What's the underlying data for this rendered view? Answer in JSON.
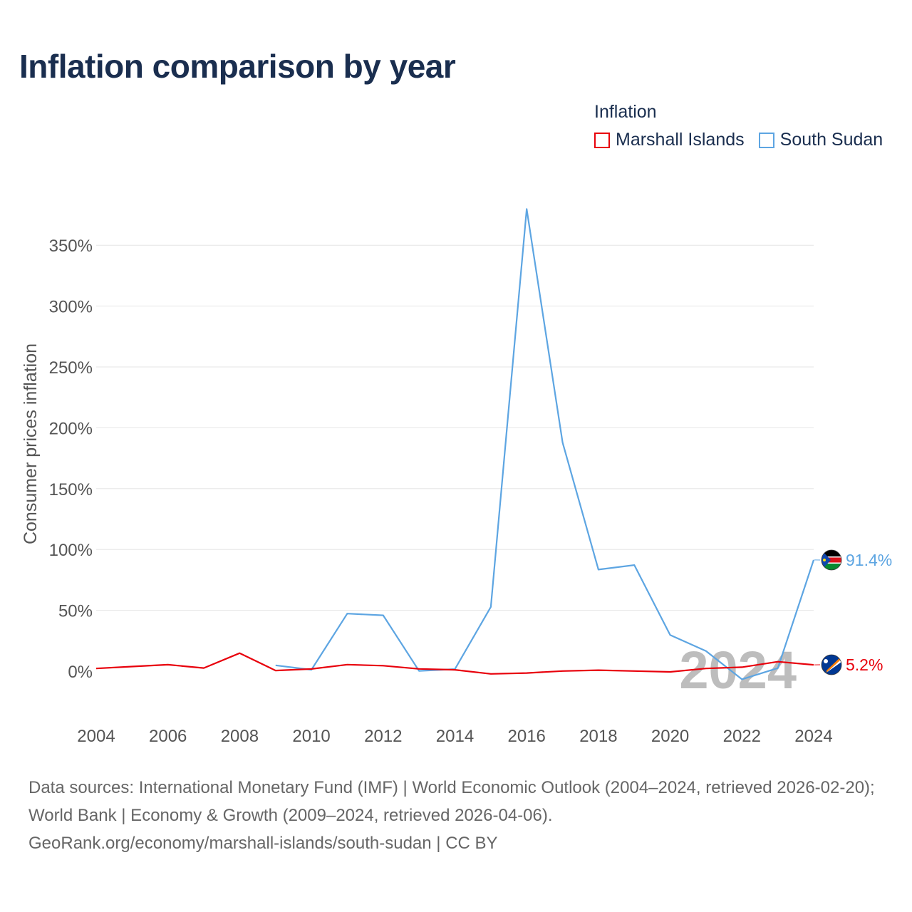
{
  "title": "Inflation comparison by year",
  "legend": {
    "title": "Inflation",
    "items": [
      {
        "label": "Marshall Islands",
        "color": "#e8000b"
      },
      {
        "label": "South Sudan",
        "color": "#5da5e2"
      }
    ]
  },
  "chart_data": {
    "type": "line",
    "title": "Inflation comparison by year",
    "ylabel": "Consumer prices inflation",
    "xlabel": "",
    "xlim": [
      2004,
      2024
    ],
    "ylim": [
      -40,
      380
    ],
    "x_ticks": [
      2004,
      2006,
      2008,
      2010,
      2012,
      2014,
      2016,
      2018,
      2020,
      2022,
      2024
    ],
    "x_tick_labels": [
      "2004",
      "2006",
      "2008",
      "2010",
      "2012",
      "2014",
      "2016",
      "2018",
      "2020",
      "2022",
      "2024"
    ],
    "y_ticks": [
      0,
      50,
      100,
      150,
      200,
      250,
      300,
      350
    ],
    "y_tick_labels": [
      "0%",
      "50%",
      "100%",
      "150%",
      "200%",
      "250%",
      "300%",
      "350%"
    ],
    "series": [
      {
        "name": "Marshall Islands",
        "color": "#e8000b",
        "end_label": "5.2%",
        "flag": "marshall-islands-flag",
        "x": [
          2004,
          2005,
          2006,
          2007,
          2008,
          2009,
          2010,
          2011,
          2012,
          2013,
          2014,
          2015,
          2016,
          2017,
          2018,
          2019,
          2020,
          2021,
          2022,
          2023,
          2024
        ],
        "values": [
          2.2,
          3.8,
          5.3,
          2.6,
          14.8,
          0.5,
          1.8,
          5.4,
          4.5,
          1.9,
          1.1,
          -2.2,
          -1.5,
          0.1,
          0.8,
          0.1,
          -0.6,
          2.2,
          3.3,
          7.8,
          5.2
        ]
      },
      {
        "name": "South Sudan",
        "color": "#5da5e2",
        "end_label": "91.4%",
        "flag": "south-sudan-flag",
        "x": [
          2009,
          2010,
          2011,
          2012,
          2013,
          2014,
          2015,
          2016,
          2017,
          2018,
          2019,
          2020,
          2021,
          2022,
          2023,
          2024
        ],
        "values": [
          4.8,
          1.2,
          47.3,
          45.9,
          0.2,
          1.7,
          52.8,
          379.8,
          187.9,
          83.5,
          87.2,
          29.7,
          16.5,
          -6.7,
          2.5,
          91.4
        ]
      }
    ],
    "watermark": "2024"
  },
  "footer": {
    "line1": "Data sources: International Monetary Fund (IMF) | World Economic Outlook (2004–2024, retrieved 2026-02-20); World Bank | Economy & Growth (2009–2024, retrieved 2026-04-06).",
    "line2": "GeoRank.org/economy/marshall-islands/south-sudan | CC BY"
  }
}
